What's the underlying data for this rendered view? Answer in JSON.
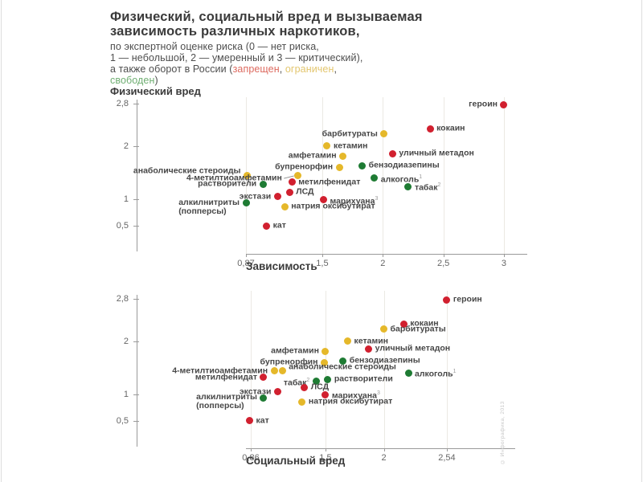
{
  "title": {
    "line1": "Физический, социальный вред и вызываемая",
    "line2": "зависимость различных наркотиков,"
  },
  "subtitle": {
    "line1": "по экспертной оценке риска (0 — нет риска,",
    "line2": "1 — небольшой, 2 — умеренный и 3 — критический),",
    "line3_prefix": "а также оборот в России (",
    "banned_word": "запрещен",
    "comma1": ", ",
    "limited_word": "ограничен",
    "comma2": ",",
    "free_word": "свободен",
    "close_paren": ")"
  },
  "colors": {
    "banned": "#d1202f",
    "limited": "#e5b82a",
    "free": "#1e7b33",
    "subtitle_banned": "#dd6a5f",
    "subtitle_limited": "#e3c66e",
    "subtitle_free": "#6fae72"
  },
  "credit": "© Инфографика, 2013",
  "chart_data": [
    {
      "type": "scatter",
      "y_axis_title": "Физический вред",
      "xlabel": "Зависимость",
      "ylabel": "Физический вред",
      "xlim": [
        0.87,
        3
      ],
      "ylim": [
        0.5,
        2.8
      ],
      "grid": "vertical-only",
      "x_ticks": [
        {
          "v": 0.87,
          "label": "0,87"
        },
        {
          "v": 1.5,
          "label": "1,5"
        },
        {
          "v": 2,
          "label": "2"
        },
        {
          "v": 2.5,
          "label": "2,5"
        },
        {
          "v": 3,
          "label": "3"
        }
      ],
      "y_ticks": [
        {
          "v": 2.8,
          "label": "2,8"
        },
        {
          "v": 2,
          "label": "2"
        },
        {
          "v": 1,
          "label": "1"
        },
        {
          "v": 0.5,
          "label": "0,5"
        }
      ],
      "points": [
        {
          "name": "героин",
          "x": 3.0,
          "y": 2.78,
          "status": "banned",
          "side": "left"
        },
        {
          "name": "кокаин",
          "x": 2.39,
          "y": 2.33,
          "status": "banned",
          "side": "right"
        },
        {
          "name": "барбитураты",
          "x": 2.01,
          "y": 2.23,
          "status": "limited",
          "side": "left"
        },
        {
          "name": "кетамин",
          "x": 1.54,
          "y": 2.0,
          "status": "limited",
          "side": "right"
        },
        {
          "name": "уличный метадон",
          "x": 2.08,
          "y": 1.86,
          "status": "banned",
          "side": "right"
        },
        {
          "name": "амфетамин",
          "x": 1.67,
          "y": 1.81,
          "status": "limited",
          "side": "left"
        },
        {
          "name": "бензодиазепины",
          "x": 1.83,
          "y": 1.63,
          "status": "free",
          "side": "right"
        },
        {
          "name": "бупренорфин",
          "x": 1.64,
          "y": 1.6,
          "status": "limited",
          "side": "left"
        },
        {
          "name": "анаболические стероиды",
          "x": 0.88,
          "y": 1.45,
          "status": "limited",
          "side": "left",
          "dy": -5
        },
        {
          "name": "4-метилтиоамфетамин",
          "x": 1.3,
          "y": 1.44,
          "status": "limited",
          "side": "left",
          "dy": 3,
          "connector": true
        },
        {
          "name": "алкоголь",
          "x": 1.93,
          "y": 1.4,
          "status": "free",
          "side": "right",
          "footnote": "1"
        },
        {
          "name": "метилфенидат",
          "x": 1.25,
          "y": 1.32,
          "status": "banned",
          "side": "right"
        },
        {
          "name": "растворители",
          "x": 1.01,
          "y": 1.28,
          "status": "free",
          "side": "left"
        },
        {
          "name": "табак",
          "x": 2.21,
          "y": 1.24,
          "status": "free",
          "side": "right",
          "footnote": "2"
        },
        {
          "name": "ЛСД",
          "x": 1.23,
          "y": 1.13,
          "status": "banned",
          "side": "right"
        },
        {
          "name": "экстази",
          "x": 1.13,
          "y": 1.05,
          "status": "banned",
          "side": "left"
        },
        {
          "name": "марихуана",
          "x": 1.51,
          "y": 0.99,
          "status": "banned",
          "side": "right",
          "footnote": "3"
        },
        {
          "name": "алкилнитриты",
          "x": 0.87,
          "y": 0.93,
          "status": "free",
          "side": "left",
          "label2": "(попперсы)"
        },
        {
          "name": "натрия оксибутират",
          "x": 1.19,
          "y": 0.86,
          "status": "limited",
          "side": "right"
        },
        {
          "name": "кат",
          "x": 1.04,
          "y": 0.5,
          "status": "banned",
          "side": "right"
        }
      ]
    },
    {
      "type": "scatter",
      "xlabel": "Социальный вред",
      "ylabel": "Физический вред",
      "xlim": [
        0.86,
        2.54
      ],
      "ylim": [
        0.5,
        2.8
      ],
      "grid": "vertical-only",
      "x_ticks": [
        {
          "v": 0.86,
          "label": "0,86"
        },
        {
          "v": 1.5,
          "label": "1,5"
        },
        {
          "v": 2,
          "label": "2"
        },
        {
          "v": 2.54,
          "label": "2,54"
        }
      ],
      "y_ticks": [
        {
          "v": 2.8,
          "label": "2,8"
        },
        {
          "v": 2,
          "label": "2"
        },
        {
          "v": 1,
          "label": "1"
        },
        {
          "v": 0.5,
          "label": "0,5"
        }
      ],
      "points": [
        {
          "name": "героин",
          "x": 2.54,
          "y": 2.78,
          "status": "banned",
          "side": "right"
        },
        {
          "name": "кокаин",
          "x": 2.17,
          "y": 2.33,
          "status": "banned",
          "side": "right"
        },
        {
          "name": "барбитураты",
          "x": 2.0,
          "y": 2.23,
          "status": "limited",
          "side": "right"
        },
        {
          "name": "кетамин",
          "x": 1.69,
          "y": 2.0,
          "status": "limited",
          "side": "right"
        },
        {
          "name": "уличный метадон",
          "x": 1.87,
          "y": 1.86,
          "status": "banned",
          "side": "right"
        },
        {
          "name": "амфетамин",
          "x": 1.5,
          "y": 1.81,
          "status": "limited",
          "side": "left"
        },
        {
          "name": "бензодиазепины",
          "x": 1.65,
          "y": 1.63,
          "status": "free",
          "side": "right"
        },
        {
          "name": "бупренорфин",
          "x": 1.49,
          "y": 1.6,
          "status": "limited",
          "side": "left"
        },
        {
          "name": "анаболические стероиды",
          "x": 1.13,
          "y": 1.45,
          "status": "limited",
          "side": "right",
          "dy": -4
        },
        {
          "name": "4-метилтиоамфетамин",
          "x": 1.06,
          "y": 1.44,
          "status": "limited",
          "side": "left"
        },
        {
          "name": "алкоголь",
          "x": 2.21,
          "y": 1.4,
          "status": "free",
          "side": "right",
          "footnote": "1"
        },
        {
          "name": "метилфенидат",
          "x": 0.97,
          "y": 1.32,
          "status": "banned",
          "side": "left"
        },
        {
          "name": "растворители",
          "x": 1.52,
          "y": 1.28,
          "status": "free",
          "side": "right"
        },
        {
          "name": "табак",
          "x": 1.42,
          "y": 1.24,
          "status": "free",
          "side": "left",
          "footnote": "2"
        },
        {
          "name": "ЛСД",
          "x": 1.32,
          "y": 1.13,
          "status": "banned",
          "side": "right"
        },
        {
          "name": "экстази",
          "x": 1.09,
          "y": 1.05,
          "status": "banned",
          "side": "left"
        },
        {
          "name": "марихуана",
          "x": 1.5,
          "y": 0.99,
          "status": "banned",
          "side": "right",
          "footnote": "3"
        },
        {
          "name": "алкилнитриты",
          "x": 0.97,
          "y": 0.93,
          "status": "free",
          "side": "left",
          "label2": "(попперсы)"
        },
        {
          "name": "натрия оксибутират",
          "x": 1.3,
          "y": 0.86,
          "status": "limited",
          "side": "right"
        },
        {
          "name": "кат",
          "x": 0.85,
          "y": 0.5,
          "status": "banned",
          "side": "right"
        }
      ]
    }
  ]
}
